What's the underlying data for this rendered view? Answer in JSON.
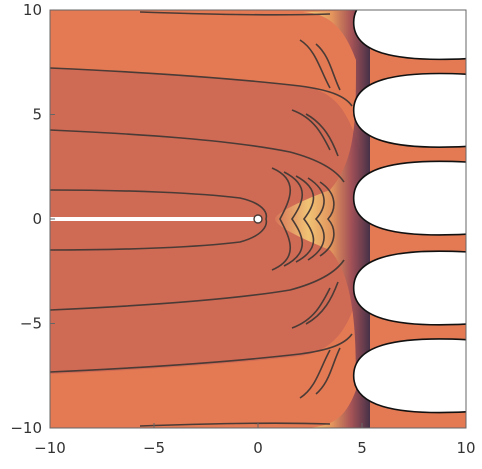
{
  "chart_data": {
    "type": "contour",
    "title": "",
    "xlabel": "",
    "ylabel": "",
    "xlim": [
      -10,
      10
    ],
    "ylim": [
      -10,
      10
    ],
    "x_ticks": [
      -10,
      -5,
      0,
      5,
      10
    ],
    "y_ticks": [
      -10,
      -5,
      0,
      5,
      10
    ],
    "x_tick_labels": [
      "−10",
      "−5",
      "0",
      "5",
      "10"
    ],
    "y_tick_labels": [
      "−10",
      "−5",
      "0",
      "5",
      "10"
    ],
    "grid": false,
    "legend": "none",
    "colors": {
      "outer_fill": "#e37a54",
      "inner_fill": "#cf6a55",
      "contour_line": "#4a3b36",
      "branch_cut": "#ffffff",
      "hot_band": [
        "#f6d27a",
        "#eeaa62",
        "#d9785a",
        "#9c4d57",
        "#5c3455",
        "#2b2446"
      ]
    },
    "branch_cut": {
      "x": [
        -10,
        0
      ],
      "y": 0
    },
    "singular_point": {
      "x": 0,
      "y": 0
    },
    "white_lobes_y_centers": [
      9.4,
      5.2,
      1.0,
      -3.3,
      -7.5
    ]
  }
}
